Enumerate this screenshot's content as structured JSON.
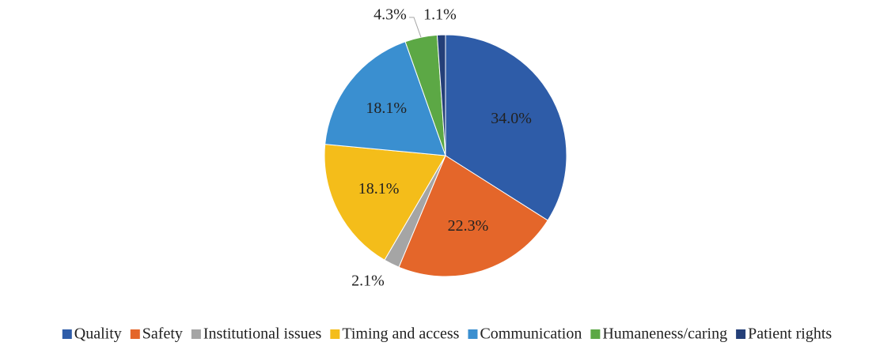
{
  "chart_data": {
    "type": "pie",
    "categories": [
      "Quality",
      "Safety",
      "Institutional issues",
      "Timing and access",
      "Communication",
      "Humaneness/caring",
      "Patient rights"
    ],
    "values": [
      34.0,
      22.3,
      2.1,
      18.1,
      18.1,
      4.3,
      1.1
    ],
    "value_labels": [
      "34.0%",
      "22.3%",
      "2.1%",
      "18.1%",
      "18.1%",
      "4.3%",
      "1.1%"
    ],
    "colors": [
      "#2e5ca8",
      "#e4662a",
      "#a5a5a5",
      "#f4bd1a",
      "#3a8fd0",
      "#5ca845",
      "#243f78"
    ],
    "legend": "bottom"
  }
}
